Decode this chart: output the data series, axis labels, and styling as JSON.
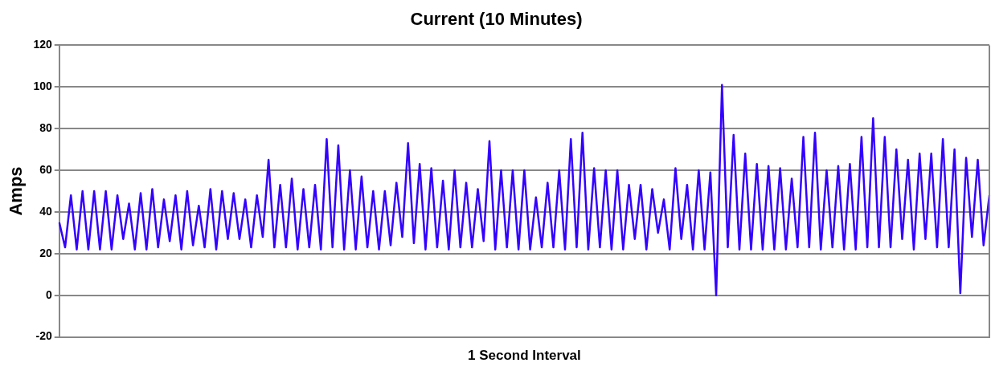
{
  "chart_data": {
    "type": "line",
    "title": "Current (10 Minutes)",
    "xlabel": "1 Second Interval",
    "ylabel": "Amps",
    "categories": [
      null,
      null,
      null,
      null,
      null,
      null,
      null,
      null,
      null,
      null,
      null,
      null,
      null,
      null,
      null,
      null,
      null,
      null,
      null,
      null,
      null,
      null,
      null,
      null,
      null,
      null,
      null,
      null,
      null,
      null,
      null,
      null,
      null,
      null,
      null,
      null,
      null,
      null,
      null,
      null,
      null,
      null,
      null,
      null,
      null,
      null,
      null,
      null,
      null,
      null,
      null,
      null,
      null,
      null,
      null,
      null,
      null,
      null,
      null,
      null,
      null,
      null,
      null,
      null,
      null,
      null,
      null,
      null,
      null,
      null,
      null,
      null,
      null,
      null,
      null,
      null,
      null,
      null,
      null,
      null,
      null,
      null,
      null,
      null,
      null,
      null,
      null,
      null,
      null,
      null,
      null,
      null,
      null,
      null,
      null,
      null,
      null,
      null,
      null,
      null,
      null,
      null,
      null,
      null,
      null,
      null,
      null,
      null,
      null,
      null,
      null,
      null,
      null,
      null,
      null,
      null,
      null,
      null,
      null,
      null,
      null,
      null,
      null,
      null,
      null,
      null,
      null,
      null,
      null,
      null,
      null,
      null,
      null,
      null,
      null,
      null,
      null,
      null,
      null,
      null,
      null,
      null,
      null,
      null,
      null,
      null,
      null,
      null,
      null,
      null,
      null,
      null,
      null,
      null,
      null,
      null,
      null,
      null,
      null,
      null,
      null
    ],
    "series": [
      {
        "color": "#3300ff",
        "values": [
          35,
          23,
          48,
          22,
          50,
          22,
          50,
          22,
          50,
          22,
          48,
          27,
          44,
          22,
          49,
          22,
          51,
          23,
          46,
          26,
          48,
          22,
          50,
          24,
          43,
          23,
          51,
          22,
          50,
          27,
          49,
          27,
          46,
          23,
          48,
          28,
          65,
          23,
          53,
          23,
          56,
          22,
          51,
          23,
          53,
          22,
          75,
          23,
          72,
          22,
          60,
          22,
          57,
          23,
          50,
          22,
          50,
          24,
          54,
          28,
          73,
          25,
          63,
          22,
          61,
          23,
          55,
          22,
          60,
          23,
          54,
          23,
          51,
          26,
          74,
          22,
          60,
          23,
          60,
          22,
          60,
          22,
          47,
          23,
          54,
          23,
          60,
          22,
          75,
          23,
          78,
          22,
          61,
          23,
          60,
          22,
          60,
          22,
          53,
          27,
          53,
          22,
          51,
          30,
          46,
          22,
          61,
          27,
          53,
          22,
          60,
          22,
          59,
          0,
          101,
          23,
          77,
          22,
          68,
          22,
          63,
          22,
          62,
          22,
          61,
          22,
          56,
          23,
          76,
          23,
          78,
          22,
          60,
          23,
          62,
          22,
          63,
          22,
          76,
          23,
          85,
          23,
          76,
          23,
          70,
          27,
          65,
          22,
          68,
          27,
          68,
          23,
          75,
          23,
          70,
          1,
          66,
          28,
          65,
          24,
          48
        ]
      }
    ],
    "ylim": [
      -20,
      120
    ],
    "yticks": [
      -20,
      0,
      20,
      40,
      60,
      80,
      100,
      120
    ],
    "grid": "y",
    "legend": false,
    "marker": "none",
    "line_style": "solid",
    "tick_labels": "y"
  }
}
